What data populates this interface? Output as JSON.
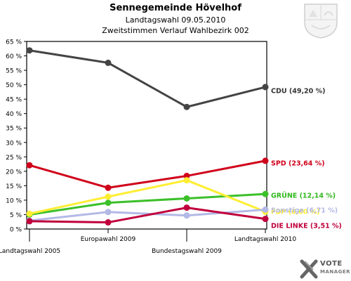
{
  "header": {
    "title": "Sennegemeinde Hövelhof",
    "subtitle1": "Landtagswahl 09.05.2010",
    "subtitle2": "Zweitstimmen Verlauf Wahlbezirk 002"
  },
  "logo": {
    "line1": "VOTE",
    "line2": "MANAGER"
  },
  "chart_data": {
    "type": "line",
    "title": "Sennegemeinde Hövelhof",
    "categories": [
      "Landtagswahl 2005",
      "Europawahl 2009",
      "Bundestagswahl 2009",
      "Landtagswahl 2010"
    ],
    "ylim": [
      0,
      65
    ],
    "yticks": [
      "0 %",
      "5 %",
      "10 %",
      "15 %",
      "20 %",
      "25 %",
      "30 %",
      "35 %",
      "40 %",
      "45 %",
      "50 %",
      "55 %",
      "60 %",
      "65 %"
    ],
    "grid": false,
    "series": [
      {
        "name": "CDU",
        "label": "CDU (49,20 %)",
        "color": "#444444",
        "values": [
          61.9,
          57.6,
          42.3,
          49.2
        ]
      },
      {
        "name": "SPD",
        "label": "SPD (23,64 %)",
        "color": "#d0021b",
        "values": [
          22.1,
          14.3,
          18.4,
          23.64
        ]
      },
      {
        "name": "GRÜNE",
        "label": "GRÜNE (12,14 %)",
        "color": "#3cc02a",
        "values": [
          5.0,
          9.1,
          10.6,
          12.14
        ]
      },
      {
        "name": "FDP",
        "label": "FDP (6,00 %)",
        "color": "#ffee33",
        "values": [
          5.3,
          11.2,
          16.9,
          6.0
        ]
      },
      {
        "name": "Sonstige",
        "label": "Sonstige (6,71 %)",
        "color": "#b3b9e6",
        "values": [
          2.9,
          5.9,
          4.7,
          6.71
        ]
      },
      {
        "name": "DIE LINKE",
        "label": "DIE LINKE (3,51 %)",
        "color": "#c0003c",
        "values": [
          2.7,
          2.3,
          7.4,
          3.51
        ]
      }
    ]
  }
}
